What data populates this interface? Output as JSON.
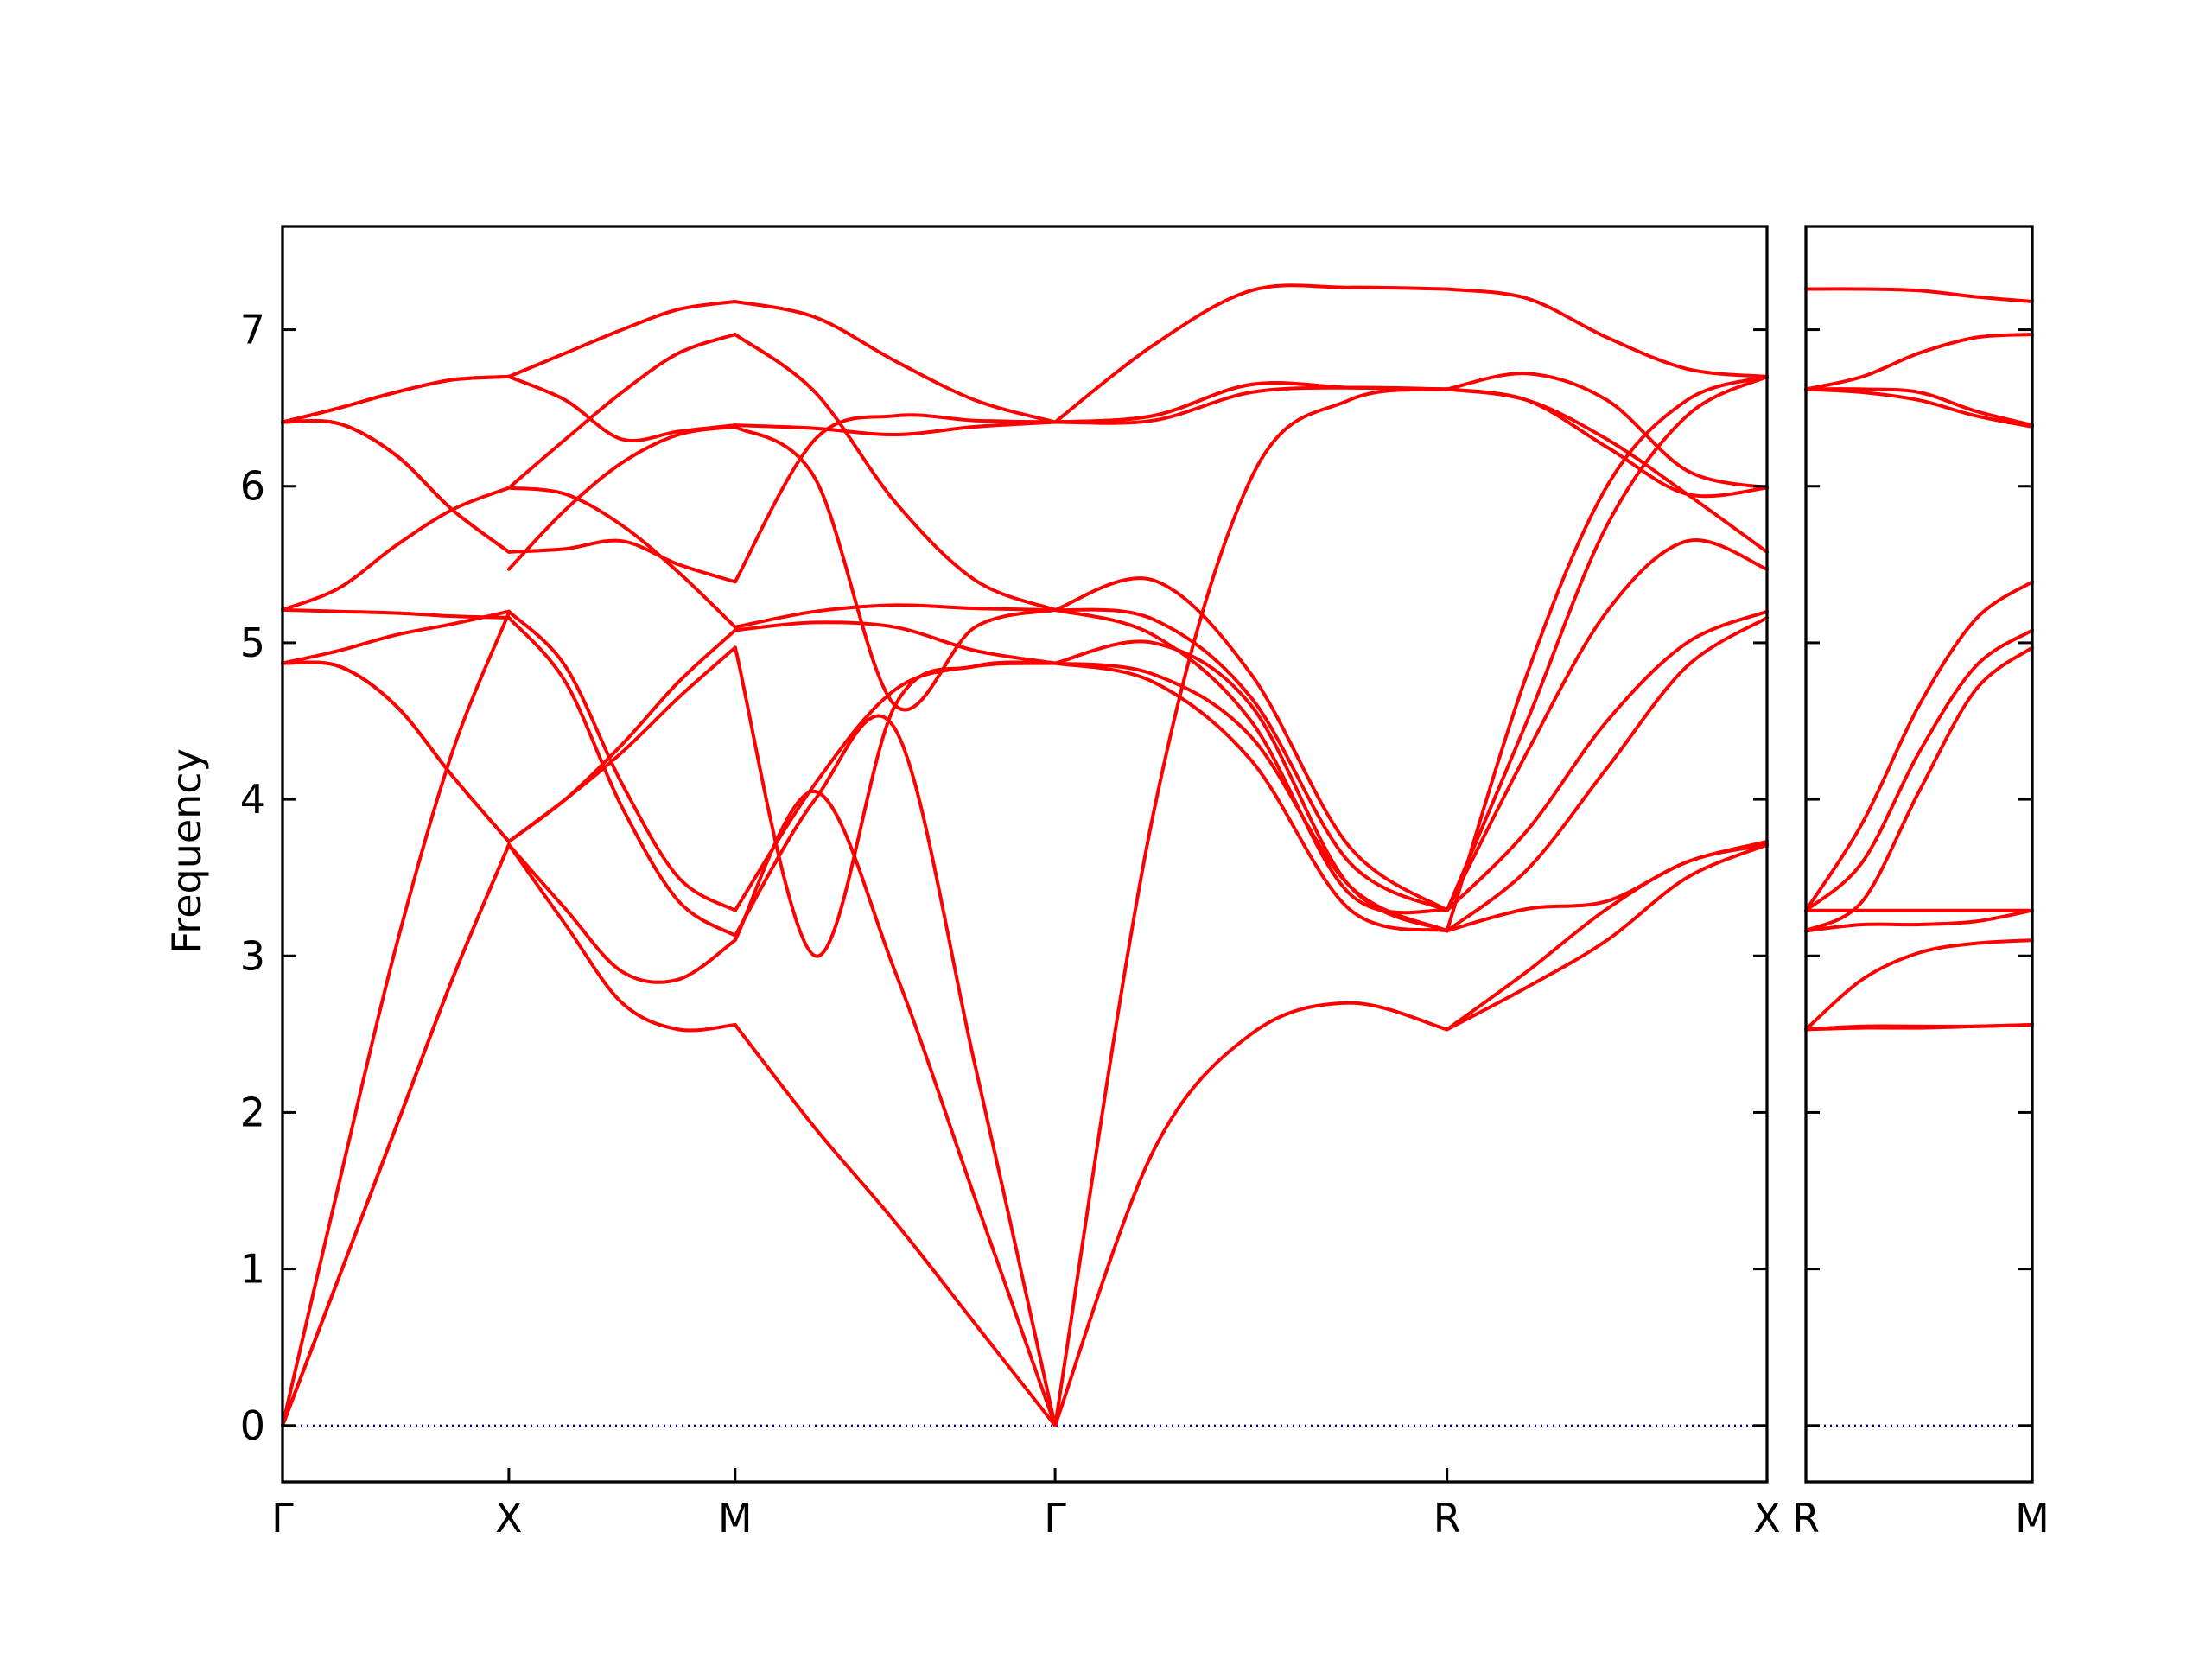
{
  "chart_data": {
    "type": "line",
    "ylabel": "Frequency",
    "ylim": [
      -0.36,
      7.66
    ],
    "yticks": [
      0,
      1,
      2,
      3,
      4,
      5,
      6,
      7
    ],
    "line_color": "#ff0000",
    "zero_line_color": "#0000aa",
    "grid": false,
    "panels": [
      {
        "xticks": [
          "Γ",
          "X",
          "M",
          "Γ",
          "R",
          "X"
        ],
        "segment_lengths": [
          1,
          1,
          1.414,
          1.732,
          1.414
        ],
        "segments": [
          {
            "from": "Γ",
            "to": "X",
            "x": [
              0,
              0.25,
              0.5,
              0.75,
              1
            ],
            "bands": [
              [
                0,
                0.95,
                1.9,
                2.85,
                3.71
              ],
              [
                0,
                0.95,
                1.9,
                2.85,
                3.71
              ],
              [
                0,
                1.55,
                3.05,
                4.3,
                5.19
              ],
              [
                4.87,
                4.85,
                4.6,
                4.15,
                3.73
              ],
              [
                4.87,
                4.85,
                4.6,
                4.15,
                3.73
              ],
              [
                4.87,
                4.95,
                5.05,
                5.12,
                5.2
              ],
              [
                5.21,
                5.2,
                5.19,
                5.17,
                5.16
              ],
              [
                5.21,
                5.35,
                5.62,
                5.85,
                5.99
              ],
              [
                6.41,
                6.4,
                6.2,
                5.85,
                5.58
              ],
              [
                6.41,
                6.4,
                6.2,
                5.85,
                5.58
              ],
              [
                6.41,
                6.5,
                6.6,
                6.68,
                6.7
              ],
              [
                6.41,
                6.5,
                6.6,
                6.68,
                6.7
              ]
            ]
          },
          {
            "from": "X",
            "to": "M",
            "x": [
              0,
              0.25,
              0.5,
              0.75,
              1
            ],
            "bands": [
              [
                3.71,
                3.2,
                2.7,
                2.53,
                2.56
              ],
              [
                3.71,
                3.3,
                2.9,
                2.85,
                3.1
              ],
              [
                3.73,
                4.0,
                4.35,
                4.75,
                5.08
              ],
              [
                3.73,
                4.0,
                4.3,
                4.65,
                4.97
              ],
              [
                5.16,
                4.75,
                3.95,
                3.35,
                3.13
              ],
              [
                5.2,
                4.85,
                4.1,
                3.5,
                3.29
              ],
              [
                5.47,
                5.85,
                6.15,
                6.33,
                6.38
              ],
              [
                5.58,
                5.6,
                5.65,
                5.5,
                5.39
              ],
              [
                5.99,
                5.95,
                5.75,
                5.45,
                5.1
              ],
              [
                5.99,
                6.3,
                6.6,
                6.85,
                6.97
              ],
              [
                6.7,
                6.55,
                6.3,
                6.35,
                6.39
              ],
              [
                6.7,
                6.85,
                7.0,
                7.13,
                7.18
              ]
            ]
          },
          {
            "from": "M",
            "to": "Γ",
            "x": [
              0,
              0.25,
              0.5,
              0.75,
              1
            ],
            "bands": [
              [
                2.56,
                1.9,
                1.3,
                0.65,
                0
              ],
              [
                3.1,
                4.05,
                2.9,
                1.45,
                0
              ],
              [
                3.13,
                4.0,
                4.45,
                2.3,
                0
              ],
              [
                3.29,
                4.1,
                4.7,
                4.85,
                4.87
              ],
              [
                4.97,
                3.0,
                4.6,
                4.85,
                4.87
              ],
              [
                5.08,
                5.13,
                5.1,
                4.95,
                4.87
              ],
              [
                5.1,
                5.2,
                5.24,
                5.22,
                5.21
              ],
              [
                5.39,
                6.3,
                6.45,
                6.42,
                6.41
              ],
              [
                6.38,
                6.05,
                4.6,
                5.1,
                5.21
              ],
              [
                6.39,
                6.37,
                6.33,
                6.38,
                6.41
              ],
              [
                6.97,
                6.6,
                5.9,
                5.4,
                5.21
              ],
              [
                7.18,
                7.08,
                6.8,
                6.55,
                6.41
              ]
            ]
          },
          {
            "from": "Γ",
            "to": "R",
            "x": [
              0,
              0.25,
              0.5,
              0.75,
              1
            ],
            "bands": [
              [
                0,
                1.75,
                2.5,
                2.7,
                2.53
              ],
              [
                0,
                3.9,
                6.05,
                6.55,
                6.62
              ],
              [
                4.87,
                4.75,
                4.25,
                3.3,
                3.16
              ],
              [
                4.87,
                4.8,
                4.4,
                3.45,
                3.16
              ],
              [
                5.21,
                5.15,
                4.65,
                3.6,
                3.29
              ],
              [
                5.21,
                5.4,
                4.8,
                3.7,
                3.29
              ],
              [
                6.41,
                6.45,
                6.65,
                6.63,
                6.62
              ],
              [
                6.41,
                6.45,
                6.65,
                6.63,
                6.62
              ],
              [
                6.41,
                6.9,
                7.25,
                7.27,
                7.26
              ],
              [
                4.87,
                5.0,
                4.6,
                3.45,
                3.16
              ],
              [
                5.21,
                5.05,
                4.5,
                3.4,
                3.29
              ],
              [
                6.41,
                6.42,
                6.6,
                6.63,
                6.62
              ]
            ]
          },
          {
            "from": "R",
            "to": "X",
            "x": [
              0,
              0.25,
              0.5,
              0.75,
              1
            ],
            "bands": [
              [
                2.53,
                2.8,
                3.1,
                3.5,
                3.71
              ],
              [
                2.53,
                2.9,
                3.3,
                3.6,
                3.71
              ],
              [
                3.16,
                3.3,
                3.35,
                3.6,
                3.73
              ],
              [
                3.16,
                3.55,
                4.2,
                4.85,
                5.16
              ],
              [
                3.29,
                3.8,
                4.5,
                5.0,
                5.2
              ],
              [
                3.29,
                4.3,
                5.2,
                5.65,
                5.47
              ],
              [
                3.16,
                4.8,
                6.0,
                6.55,
                6.7
              ],
              [
                6.62,
                6.55,
                6.3,
                5.95,
                5.58
              ],
              [
                6.62,
                6.55,
                6.25,
                5.95,
                5.99
              ],
              [
                6.62,
                6.72,
                6.55,
                6.1,
                5.99
              ],
              [
                7.26,
                7.2,
                6.95,
                6.75,
                6.7
              ],
              [
                3.29,
                4.5,
                5.75,
                6.45,
                6.7
              ]
            ]
          }
        ]
      },
      {
        "xticks": [
          "R",
          "M"
        ],
        "segment_lengths": [
          1
        ],
        "segments": [
          {
            "from": "R",
            "to": "M",
            "x": [
              0,
              0.25,
              0.5,
              0.75,
              1
            ],
            "bands": [
              [
                2.53,
                2.54,
                2.54,
                2.55,
                2.56
              ],
              [
                2.53,
                2.85,
                3.02,
                3.08,
                3.1
              ],
              [
                3.16,
                3.2,
                3.2,
                3.22,
                3.29
              ],
              [
                3.16,
                3.35,
                4.05,
                4.7,
                4.97
              ],
              [
                3.29,
                3.6,
                4.3,
                4.85,
                5.08
              ],
              [
                3.29,
                3.85,
                4.6,
                5.15,
                5.39
              ],
              [
                3.29,
                3.29,
                3.29,
                3.29,
                3.29
              ],
              [
                6.62,
                6.6,
                6.55,
                6.45,
                6.38
              ],
              [
                6.62,
                6.7,
                6.85,
                6.95,
                6.97
              ],
              [
                7.26,
                7.26,
                7.25,
                7.21,
                7.18
              ],
              [
                6.62,
                6.62,
                6.6,
                6.48,
                6.39
              ],
              [
                2.53,
                2.55,
                2.55,
                2.55,
                2.56
              ]
            ]
          }
        ]
      }
    ]
  }
}
